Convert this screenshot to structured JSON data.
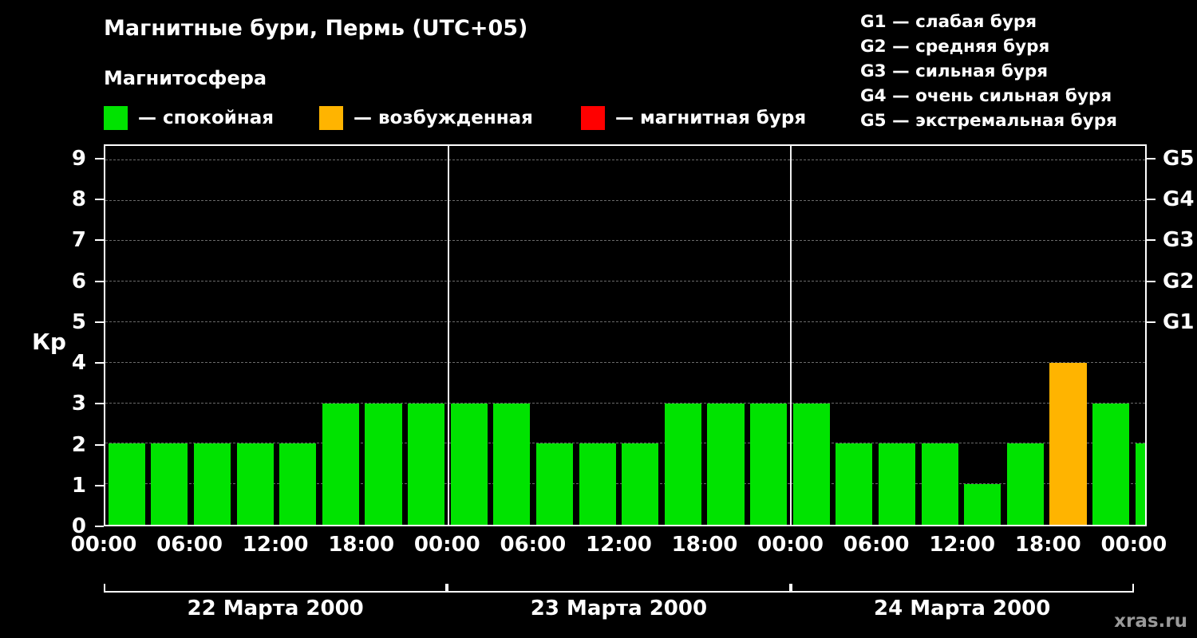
{
  "title": "Магнитные бури, Пермь (UTC+05)",
  "legend": {
    "heading": "Магнитосфера",
    "items": [
      {
        "id": "quiet",
        "label": "— спокойная",
        "color": "#00e300"
      },
      {
        "id": "excited",
        "label": "— возбужденная",
        "color": "#ffb400"
      },
      {
        "id": "storm",
        "label": "— магнитная буря",
        "color": "#ff0000"
      }
    ]
  },
  "g_legend": [
    "G1 — слабая буря",
    "G2 — средняя буря",
    "G3 — сильная буря",
    "G4 — очень сильная буря",
    "G5 — экстремальная буря"
  ],
  "watermark": "xras.ru",
  "chart_data": {
    "type": "bar",
    "title": "Магнитные бури, Пермь (UTC+05)",
    "ylabel": "Кр",
    "ylim": [
      0,
      9
    ],
    "yticks": [
      0,
      1,
      2,
      3,
      4,
      5,
      6,
      7,
      8,
      9
    ],
    "x_tick_labels": [
      "00:00",
      "06:00",
      "12:00",
      "18:00",
      "00:00",
      "06:00",
      "12:00",
      "18:00",
      "00:00",
      "06:00",
      "12:00",
      "18:00",
      "00:00"
    ],
    "g_levels": [
      {
        "label": "G1",
        "kp": 5
      },
      {
        "label": "G2",
        "kp": 6
      },
      {
        "label": "G3",
        "kp": 7
      },
      {
        "label": "G4",
        "kp": 8
      },
      {
        "label": "G5",
        "kp": 9
      }
    ],
    "bar_interval_hours": 3,
    "days": [
      {
        "label": "22 Марта 2000",
        "values": [
          2,
          2,
          2,
          2,
          2,
          3,
          3,
          3
        ]
      },
      {
        "label": "23 Марта 2000",
        "values": [
          3,
          3,
          2,
          2,
          2,
          3,
          3,
          3
        ]
      },
      {
        "label": "24 Марта 2000",
        "values": [
          3,
          2,
          2,
          2,
          1,
          2,
          4,
          3
        ]
      }
    ],
    "next_interval_partial_value": 2,
    "colors": {
      "quiet": "#00e300",
      "excited": "#ffb400",
      "storm": "#ff0000"
    },
    "color_thresholds": {
      "excited_min_kp": 4,
      "storm_min_kp": 5
    },
    "layout": {
      "grid": "dashed-horizontal",
      "legend_position": "top",
      "day_separators": true,
      "total_slots": 24.3,
      "kp_axis_max_frac": 9.35
    }
  }
}
